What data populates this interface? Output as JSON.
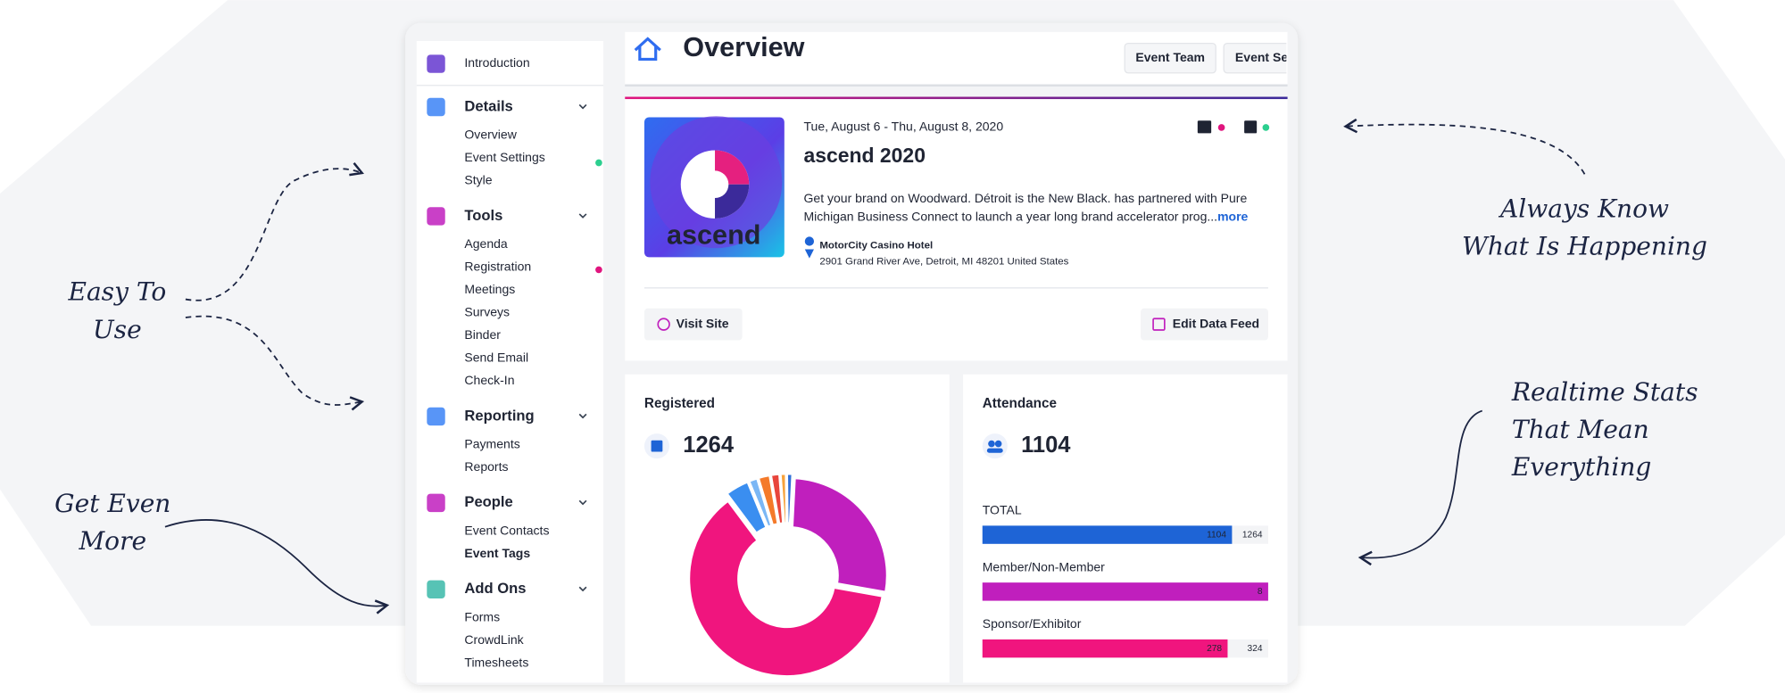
{
  "annotations": [
    {
      "lines": [
        "Easy To",
        "Use"
      ]
    },
    {
      "lines": [
        "Get Even",
        "More"
      ]
    },
    {
      "lines": [
        "Always Know",
        "What Is Happening"
      ]
    },
    {
      "lines": [
        "Realtime Stats",
        "That Mean",
        "Everything"
      ]
    }
  ],
  "sidebar": [
    {
      "label": "Introduction",
      "items": []
    },
    {
      "label": "Details",
      "items": [
        "Overview",
        "Event Settings",
        "Style"
      ]
    },
    {
      "label": "Tools",
      "items": [
        "Agenda",
        "Registration",
        "Meetings",
        "Surveys",
        "Binder",
        "Send Email",
        "Check-In"
      ]
    },
    {
      "label": "Reporting",
      "items": [
        "Payments",
        "Reports"
      ]
    },
    {
      "label": "People",
      "items": [
        "Event Contacts",
        "Event Tags"
      ]
    },
    {
      "label": "Add Ons",
      "items": [
        "Forms",
        "CrowdLink",
        "Timesheets"
      ]
    }
  ],
  "header": {
    "title": "Overview",
    "tabs": [
      "Event Team",
      "Event Settings"
    ]
  },
  "event": {
    "date": "Tue, August 6 - Thu, August 8, 2020",
    "title": "ascend 2020",
    "logo_text": "ascend",
    "description": [
      "Get your brand on Woodward. Détroit is the New Black. has partnered with Pure",
      "Michigan Business Connect to launch a year long brand accelerator prog..."
    ],
    "more": "more",
    "venue": "MotorCity Casino Hotel",
    "address": "2901 Grand River Ave, Detroit, MI 48201 United States",
    "actions": [
      "Visit Site",
      "Edit Data Feed"
    ]
  },
  "stats": [
    {
      "label": "Registered",
      "value": 1264
    },
    {
      "label": "Attendance",
      "value": 1104
    }
  ],
  "chart_data": [
    {
      "type": "donut",
      "values": [
        27,
        62,
        4,
        1.5,
        2,
        1.5,
        1,
        1
      ],
      "colors": [
        "#c01fbd",
        "#f0157e",
        "#3a8ef0",
        "#7bb7f5",
        "#f47a2a",
        "#e8453c",
        "#f7a23b",
        "#2f6fd8"
      ]
    },
    {
      "type": "bar",
      "categories": [
        "TOTAL",
        "Member/Non-Member",
        "Sponsor/Exhibitor"
      ],
      "values": [
        1104,
        8,
        278
      ],
      "totals": [
        1264,
        null,
        324
      ],
      "colors": [
        "#1e64d6",
        "#c01fbd",
        "#f0157e"
      ]
    }
  ]
}
